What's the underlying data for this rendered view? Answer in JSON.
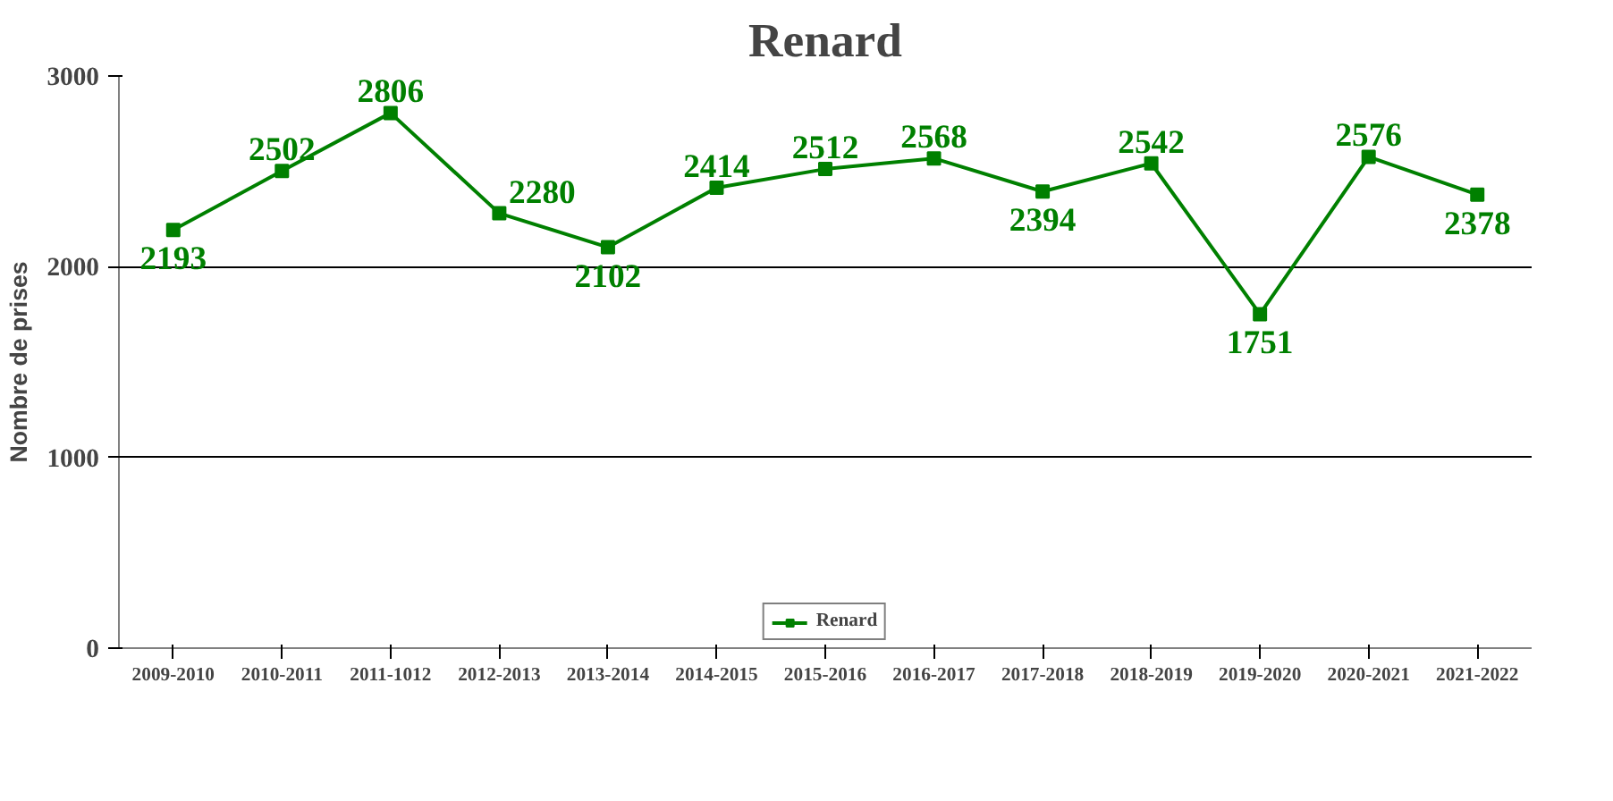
{
  "chart_data": {
    "type": "line",
    "title": "Renard",
    "ylabel": "Nombre de prises",
    "categories": [
      "2009-2010",
      "2010-2011",
      "2011-1012",
      "2012-2013",
      "2013-2014",
      "2014-2015",
      "2015-2016",
      "2016-2017",
      "2017-2018",
      "2018-2019",
      "2019-2020",
      "2020-2021",
      "2021-2022"
    ],
    "series": [
      {
        "name": "Renard",
        "color": "#008000",
        "values": [
          2193,
          2502,
          2806,
          2280,
          2102,
          2414,
          2512,
          2568,
          2394,
          2542,
          1751,
          2576,
          2378
        ]
      }
    ],
    "ylim": [
      0,
      3000
    ],
    "yticks": [
      0,
      1000,
      2000,
      3000
    ],
    "grid": "y",
    "legend": "bottom",
    "marker": "square",
    "line_style": "solid",
    "data_labels": true
  }
}
